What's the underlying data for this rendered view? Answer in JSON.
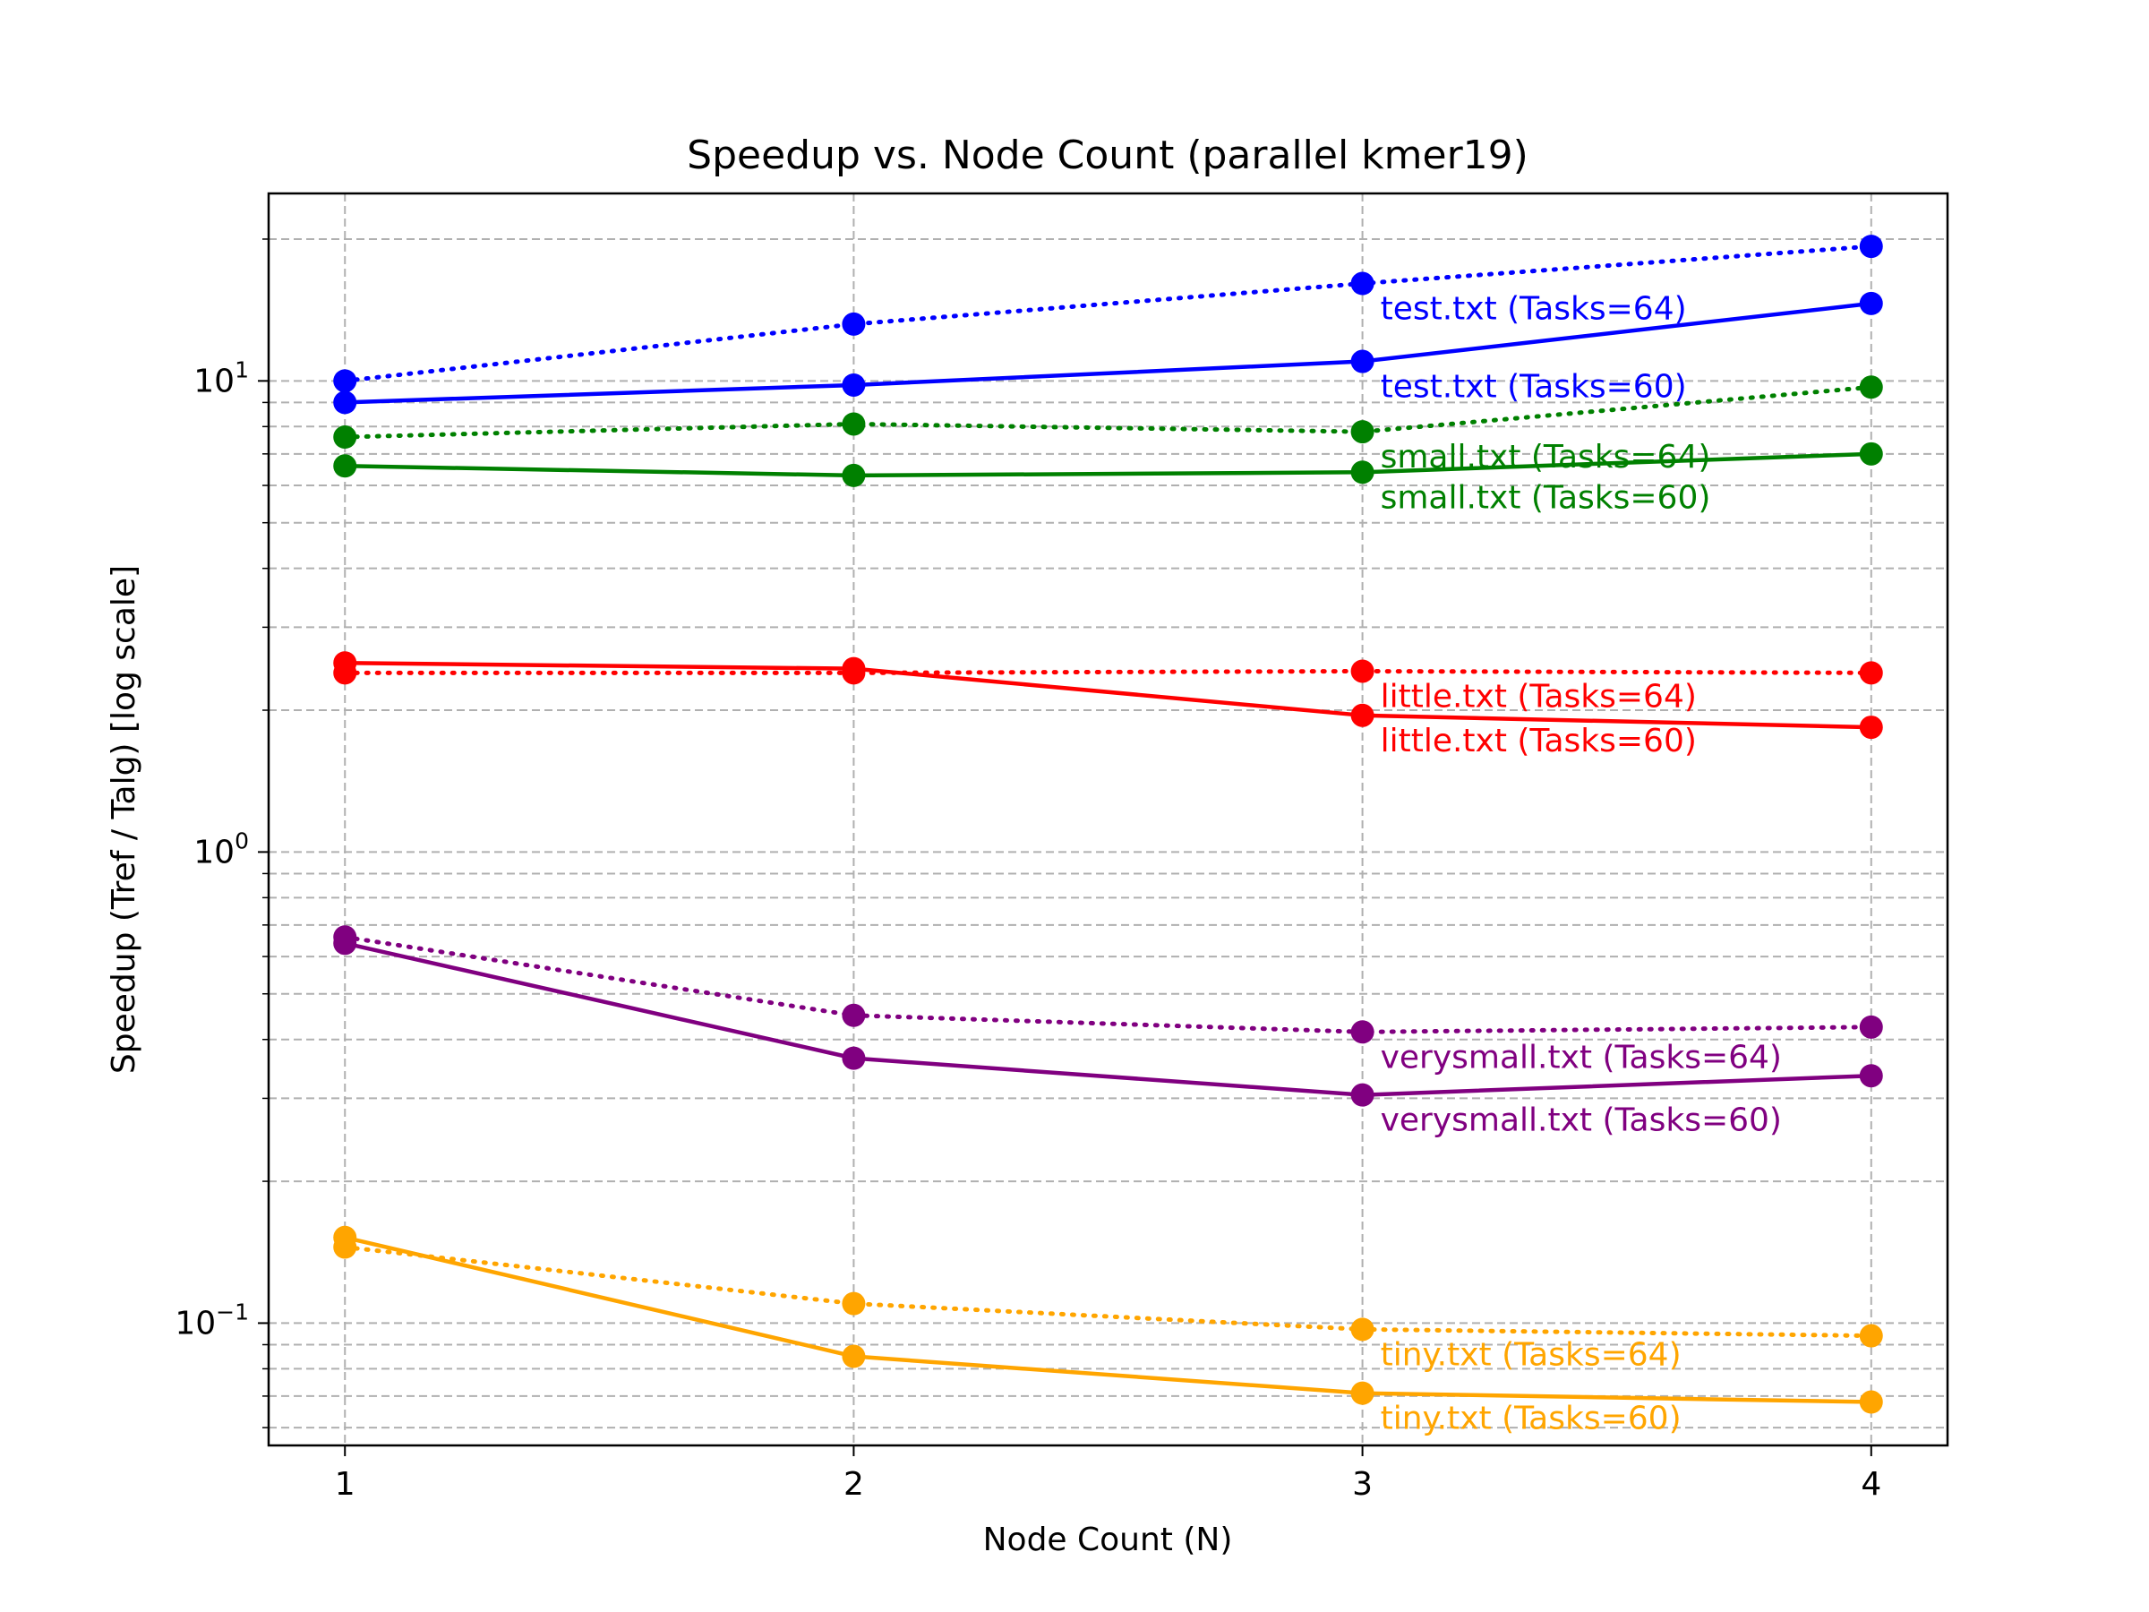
{
  "chart_data": {
    "type": "line",
    "title": "Speedup vs. Node Count (parallel kmer19)",
    "xlabel": "Node Count (N)",
    "ylabel": "Speedup (Tref / Talg) [log scale]",
    "yscale": "log",
    "ylim": [
      0.055,
      25
    ],
    "xlim": [
      0.85,
      4.15
    ],
    "x": [
      1,
      2,
      3,
      4
    ],
    "x_ticks": [
      "1",
      "2",
      "3",
      "4"
    ],
    "y_ticks": [
      {
        "base": "10",
        "exp": "−1",
        "value": 0.1
      },
      {
        "base": "10",
        "exp": "0",
        "value": 1
      },
      {
        "base": "10",
        "exp": "1",
        "value": 10
      }
    ],
    "grid": true,
    "series": [
      {
        "name": "test.txt (Tasks=64)",
        "color": "#0000ff",
        "style": "dotted",
        "values": [
          10.0,
          13.2,
          16.1,
          19.3
        ]
      },
      {
        "name": "test.txt (Tasks=60)",
        "color": "#0000ff",
        "style": "solid",
        "values": [
          9.0,
          9.8,
          11.0,
          14.6
        ]
      },
      {
        "name": "small.txt (Tasks=64)",
        "color": "#008000",
        "style": "dotted",
        "values": [
          7.6,
          8.1,
          7.8,
          9.7
        ]
      },
      {
        "name": "small.txt (Tasks=60)",
        "color": "#008000",
        "style": "solid",
        "values": [
          6.6,
          6.3,
          6.4,
          7.0
        ]
      },
      {
        "name": "little.txt (Tasks=64)",
        "color": "#ff0000",
        "style": "dotted",
        "values": [
          2.4,
          2.4,
          2.42,
          2.4
        ]
      },
      {
        "name": "little.txt (Tasks=60)",
        "color": "#ff0000",
        "style": "solid",
        "values": [
          2.52,
          2.45,
          1.95,
          1.84
        ]
      },
      {
        "name": "verysmall.txt (Tasks=64)",
        "color": "#800080",
        "style": "dotted",
        "values": [
          0.66,
          0.45,
          0.415,
          0.425
        ]
      },
      {
        "name": "verysmall.txt (Tasks=60)",
        "color": "#800080",
        "style": "solid",
        "values": [
          0.64,
          0.365,
          0.305,
          0.335
        ]
      },
      {
        "name": "tiny.txt (Tasks=64)",
        "color": "#ffa500",
        "style": "dotted",
        "values": [
          0.145,
          0.11,
          0.097,
          0.094
        ]
      },
      {
        "name": "tiny.txt (Tasks=60)",
        "color": "#ffa500",
        "style": "solid",
        "values": [
          0.152,
          0.085,
          0.071,
          0.068
        ]
      }
    ]
  }
}
